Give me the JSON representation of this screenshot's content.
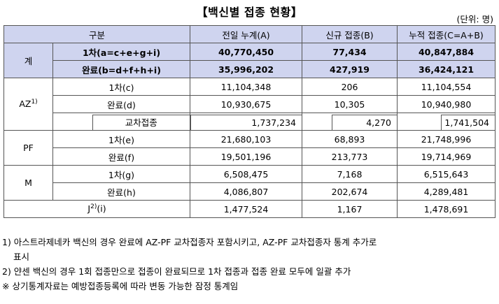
{
  "title": "【백신별 접종 현황】",
  "unit": "(단위: 명)",
  "headers": {
    "category": "구분",
    "prev": "전일 누계(A)",
    "new": "신규 접종(B)",
    "total": "누적 접종(C=A+B)"
  },
  "sum": {
    "group": "계",
    "first_label": "1차(a=c+e+g+i)",
    "first": [
      "40,770,450",
      "77,434",
      "40,847,884"
    ],
    "complete_label": "완료(b=d+f+h+i)",
    "complete": [
      "35,996,202",
      "427,919",
      "36,424,121"
    ]
  },
  "az": {
    "group": "AZ",
    "group_sup": "1)",
    "first_label": "1차(c)",
    "first": [
      "11,104,348",
      "206",
      "11,104,554"
    ],
    "complete_label": "완료(d)",
    "complete": [
      "10,930,675",
      "10,305",
      "10,940,980"
    ],
    "cross_label": "교차접종",
    "cross": [
      "1,737,234",
      "4,270",
      "1,741,504"
    ]
  },
  "pf": {
    "group": "PF",
    "first_label": "1차(e)",
    "first": [
      "21,680,103",
      "68,893",
      "21,748,996"
    ],
    "complete_label": "완료(f)",
    "complete": [
      "19,501,196",
      "213,773",
      "19,714,969"
    ]
  },
  "m": {
    "group": "M",
    "first_label": "1차(g)",
    "first": [
      "6,508,475",
      "7,168",
      "6,515,643"
    ],
    "complete_label": "완료(h)",
    "complete": [
      "4,086,807",
      "202,674",
      "4,289,481"
    ]
  },
  "j": {
    "group": "J",
    "group_sup": "2)",
    "group_suffix": "(i)",
    "values": [
      "1,477,524",
      "1,167",
      "1,478,691"
    ]
  },
  "notes": {
    "n1_line1": "1) 아스트라제네카 백신의 경우 완료에 AZ-PF 교차접종자 포함시키고, AZ-PF 교차접종자 통계 추가로",
    "n1_line2": "표시",
    "n2": "2) 얀센 백신의 경우 1회 접종만으로 접종이 완료되므로 1차 접종과 접종 완료 모두에 일괄 추가",
    "n3": "※ 상기통계자료는 예방접종등록에 따라 변동 가능한 잠정 통계임"
  }
}
